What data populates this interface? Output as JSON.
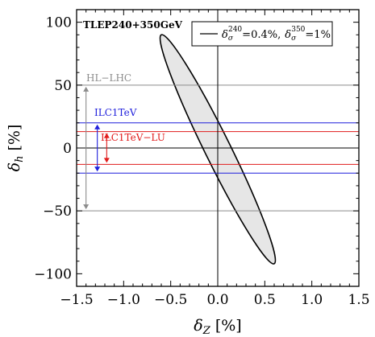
{
  "chart_data": {
    "type": "scatter",
    "title": "",
    "annotation": "TLEP240+350GeV",
    "xlabel": "δZ [%]",
    "ylabel": "δh [%]",
    "xlim": [
      -1.5,
      1.5
    ],
    "ylim": [
      -110,
      110
    ],
    "x_ticks": [
      -1.5,
      -1.0,
      -0.5,
      0.0,
      0.5,
      1.0,
      1.5
    ],
    "x_tick_labels": [
      "−1.5",
      "−1.0",
      "−0.5",
      "0.0",
      "0.5",
      "1.0",
      "1.5"
    ],
    "y_ticks": [
      -100,
      -50,
      0,
      50,
      100
    ],
    "y_tick_labels": [
      "−100",
      "−50",
      "0",
      "50",
      "100"
    ],
    "legend": {
      "position": "top-right",
      "label": "δσ240=0.4%, δσ350=1%",
      "label_parts": {
        "sym": "δ",
        "sub": "σ",
        "sup1": "240",
        "eq1": "=0.4%,",
        "sup2": "350",
        "eq2": "=1%"
      }
    },
    "ellipse": {
      "center": [
        0.0,
        0.0
      ],
      "tips": [
        [
          -0.6,
          90
        ],
        [
          0.6,
          -92
        ]
      ],
      "fill": "#e6e6e6",
      "stroke": "#000000"
    },
    "bands": [
      {
        "name": "HL−LHC",
        "range": [
          -50,
          50
        ],
        "color": "#8c8c8c",
        "arrow_x": -1.4
      },
      {
        "name": "ILC1TeV",
        "range": [
          -20,
          20
        ],
        "color": "#1f1fdc",
        "arrow_x": -1.28
      },
      {
        "name": "ILC1TeV−LU",
        "range": [
          -13,
          13
        ],
        "color": "#e11c1c",
        "arrow_x": -1.18
      }
    ],
    "reference_lines": {
      "x": 0,
      "y": 0,
      "color": "#000000"
    }
  }
}
